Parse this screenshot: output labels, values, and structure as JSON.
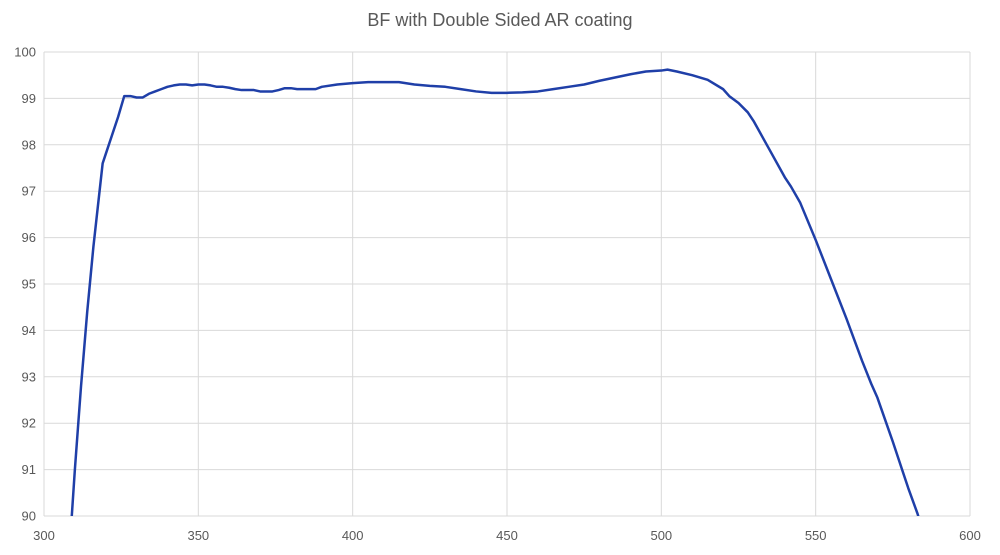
{
  "chart_data": {
    "type": "line",
    "title": "BF with Double Sided AR coating",
    "xlabel": "",
    "ylabel": "",
    "xlim": [
      300,
      600
    ],
    "ylim": [
      90,
      100
    ],
    "xticks": [
      300,
      350,
      400,
      450,
      500,
      550,
      600
    ],
    "yticks": [
      90,
      91,
      92,
      93,
      94,
      95,
      96,
      97,
      98,
      99,
      100
    ],
    "grid": true,
    "legend": "none",
    "series_color": "#1f3fa8",
    "grid_color": "#d9d9d9",
    "series": [
      {
        "x": [
          309,
          310,
          311,
          312,
          313,
          314,
          315,
          316,
          317,
          318,
          319,
          320,
          322,
          324,
          326,
          327,
          328,
          330,
          332,
          334,
          336,
          338,
          340,
          342,
          344,
          346,
          348,
          350,
          352,
          354,
          356,
          358,
          360,
          362,
          364,
          366,
          368,
          370,
          372,
          374,
          376,
          378,
          380,
          382,
          384,
          386,
          388,
          390,
          395,
          400,
          405,
          410,
          415,
          420,
          425,
          430,
          435,
          440,
          445,
          450,
          455,
          460,
          465,
          470,
          475,
          480,
          485,
          490,
          495,
          500,
          502,
          505,
          510,
          515,
          520,
          522,
          525,
          528,
          530,
          535,
          540,
          542,
          545,
          550,
          555,
          560,
          565,
          568,
          570,
          575,
          578,
          580,
          583,
          585,
          587
        ],
        "y": [
          90.0,
          91.0,
          91.9,
          92.8,
          93.6,
          94.4,
          95.1,
          95.8,
          96.4,
          97.0,
          97.6,
          97.8,
          98.2,
          98.6,
          99.05,
          99.05,
          99.05,
          99.02,
          99.02,
          99.1,
          99.15,
          99.2,
          99.25,
          99.28,
          99.3,
          99.3,
          99.28,
          99.3,
          99.3,
          99.28,
          99.25,
          99.25,
          99.23,
          99.2,
          99.18,
          99.18,
          99.18,
          99.15,
          99.15,
          99.15,
          99.18,
          99.22,
          99.22,
          99.2,
          99.2,
          99.2,
          99.2,
          99.25,
          99.3,
          99.33,
          99.35,
          99.35,
          99.35,
          99.3,
          99.27,
          99.25,
          99.2,
          99.15,
          99.12,
          99.12,
          99.13,
          99.15,
          99.2,
          99.25,
          99.3,
          99.38,
          99.45,
          99.52,
          99.58,
          99.6,
          99.62,
          99.58,
          99.5,
          99.4,
          99.2,
          99.05,
          98.9,
          98.7,
          98.5,
          97.9,
          97.3,
          97.1,
          96.75,
          95.95,
          95.1,
          94.25,
          93.35,
          92.85,
          92.55,
          91.6,
          91.0,
          90.6,
          90.05,
          89.6,
          89.2
        ]
      }
    ]
  }
}
